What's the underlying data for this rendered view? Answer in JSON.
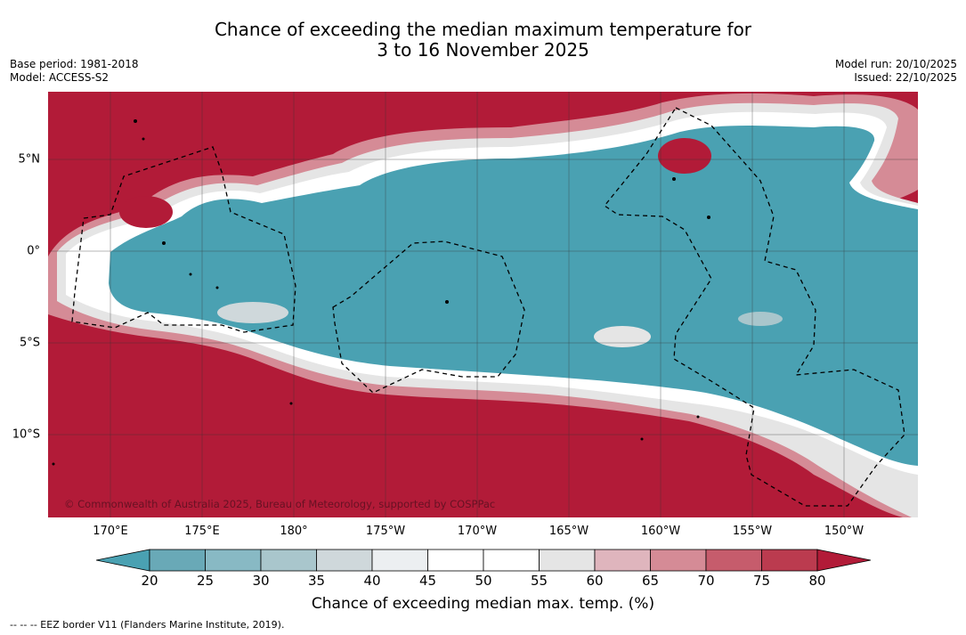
{
  "title": {
    "line1": "Chance of exceeding the median maximum temperature for",
    "line2": "3 to 16 November 2025"
  },
  "meta_left": {
    "base_period": "Base period: 1981-2018",
    "model": "Model: ACCESS-S2"
  },
  "meta_right": {
    "model_run": "Model run: 20/10/2025",
    "issued": "Issued: 22/10/2025"
  },
  "map": {
    "lon_labels": [
      "170°E",
      "175°E",
      "180°",
      "175°W",
      "170°W",
      "165°W",
      "160°W",
      "155°W",
      "150°W"
    ],
    "lat_labels": [
      "5°N",
      "0°",
      "5°S",
      "10°S"
    ],
    "copyright": "© Commonwealth of Australia 2025, Bureau of Meteorology, supported by COSPPac",
    "colors": {
      "high": "#b21b38",
      "low": "#4aa1b2",
      "neutral": "#ffffff"
    }
  },
  "colorbar": {
    "ticks": [
      "20",
      "25",
      "30",
      "35",
      "40",
      "45",
      "50",
      "55",
      "60",
      "65",
      "70",
      "75",
      "80"
    ],
    "colors": [
      "#4aa1b2",
      "#69a9b7",
      "#88b9c4",
      "#a9c6cc",
      "#cfd8db",
      "#eceff1",
      "#ffffff",
      "#ffffff",
      "#e5e5e5",
      "#dfb5bd",
      "#d58b96",
      "#c65c6c",
      "#bb3b4f",
      "#b21b38"
    ],
    "title": "Chance of exceeding median max. temp. (%)"
  },
  "footer": {
    "eez_note": "--  --  -- EEZ border V11 (Flanders Marine Institute, 2019)."
  }
}
